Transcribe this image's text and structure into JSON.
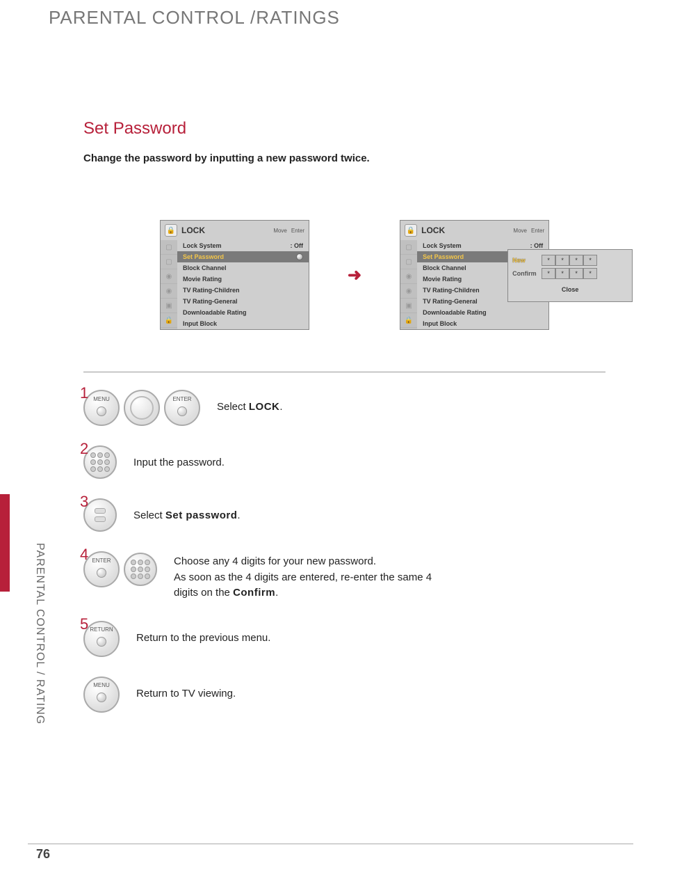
{
  "header": {
    "title": "PARENTAL CONTROL /RATINGS"
  },
  "section": {
    "title": "Set Password",
    "desc": "Change the password by inputting a new password twice."
  },
  "lock_panel": {
    "title": "LOCK",
    "action_move": "Move",
    "action_enter": "Enter",
    "items": [
      {
        "label": "Lock System",
        "value": ": Off"
      },
      {
        "label": "Set Password"
      },
      {
        "label": "Block Channel"
      },
      {
        "label": "Movie Rating"
      },
      {
        "label": "TV Rating-Children"
      },
      {
        "label": "TV Rating-General"
      },
      {
        "label": "Downloadable Rating"
      },
      {
        "label": "Input Block"
      }
    ],
    "selected_index": 1
  },
  "pw_popup": {
    "row1": "New",
    "row2": "Confirm",
    "digit": "*",
    "close": "Close"
  },
  "steps": {
    "s1": {
      "num": "1",
      "btn_menu": "MENU",
      "btn_enter": "ENTER",
      "text_prefix": "Select ",
      "text_bold": "LOCK",
      "text_suffix": "."
    },
    "s2": {
      "num": "2",
      "text": "Input the password."
    },
    "s3": {
      "num": "3",
      "text_prefix": "Select ",
      "text_bold": "Set password",
      "text_suffix": "."
    },
    "s4": {
      "num": "4",
      "btn_enter": "ENTER",
      "line1": "Choose any 4 digits for your new password.",
      "line2a": "As soon as the 4 digits are entered, re-enter the same 4 digits on the ",
      "line2b": "Confirm",
      "line2c": "."
    },
    "s5": {
      "num": "5",
      "btn_return": "RETURN",
      "text": "Return to the previous menu."
    },
    "s6": {
      "btn_menu": "MENU",
      "text": "Return to TV viewing."
    }
  },
  "side": {
    "label": "PARENTAL CONTROL / RATING"
  },
  "page_number": "76",
  "colors": {
    "accent": "#b7203a",
    "panel_bg": "#cfcfcf",
    "selected_bg": "#7a7a7a",
    "selected_fg": "#f3c64a"
  }
}
